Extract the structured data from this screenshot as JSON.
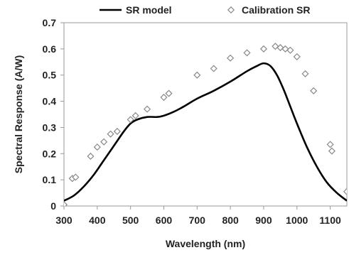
{
  "chart_data": {
    "type": "line",
    "title": "",
    "xlabel": "Wavelength (nm)",
    "ylabel": "Spectral Response (A/W)",
    "xlim": [
      300,
      1150
    ],
    "ylim": [
      0,
      0.7
    ],
    "xticks": [
      300,
      400,
      500,
      600,
      700,
      800,
      900,
      1000,
      1100
    ],
    "yticks": [
      0,
      0.1,
      0.2,
      0.3,
      0.4,
      0.5,
      0.6,
      0.7
    ],
    "xtick_labels": [
      "300",
      "400",
      "500",
      "600",
      "700",
      "800",
      "900",
      "1000",
      "1100"
    ],
    "ytick_labels": [
      "0",
      "0.1",
      "0.2",
      "0.3",
      "0.4",
      "0.5",
      "0.6",
      "0.7"
    ],
    "grid": false,
    "legend_position": "top",
    "series": [
      {
        "name": "SR model",
        "kind": "line",
        "color": "#000000",
        "x": [
          300,
          330,
          360,
          390,
          420,
          450,
          480,
          500,
          520,
          550,
          580,
          600,
          630,
          660,
          700,
          750,
          800,
          850,
          880,
          900,
          920,
          940,
          960,
          980,
          1000,
          1030,
          1060,
          1090,
          1120,
          1150
        ],
        "y": [
          0.02,
          0.04,
          0.075,
          0.12,
          0.175,
          0.23,
          0.285,
          0.315,
          0.33,
          0.34,
          0.34,
          0.345,
          0.36,
          0.38,
          0.41,
          0.44,
          0.475,
          0.515,
          0.535,
          0.545,
          0.535,
          0.5,
          0.445,
          0.38,
          0.315,
          0.225,
          0.15,
          0.09,
          0.05,
          0.02
        ]
      },
      {
        "name": "Calibration SR",
        "kind": "marker",
        "marker": "diamond",
        "color": "#888888",
        "x": [
          300,
          325,
          335,
          380,
          400,
          420,
          440,
          460,
          500,
          515,
          550,
          600,
          615,
          700,
          750,
          800,
          850,
          900,
          935,
          950,
          965,
          980,
          1000,
          1025,
          1050,
          1100,
          1105,
          1150
        ],
        "y": [
          0.005,
          0.105,
          0.11,
          0.19,
          0.225,
          0.245,
          0.275,
          0.285,
          0.33,
          0.345,
          0.37,
          0.415,
          0.43,
          0.5,
          0.525,
          0.565,
          0.585,
          0.6,
          0.61,
          0.605,
          0.6,
          0.595,
          0.57,
          0.505,
          0.44,
          0.235,
          0.21,
          0.055
        ]
      }
    ]
  }
}
